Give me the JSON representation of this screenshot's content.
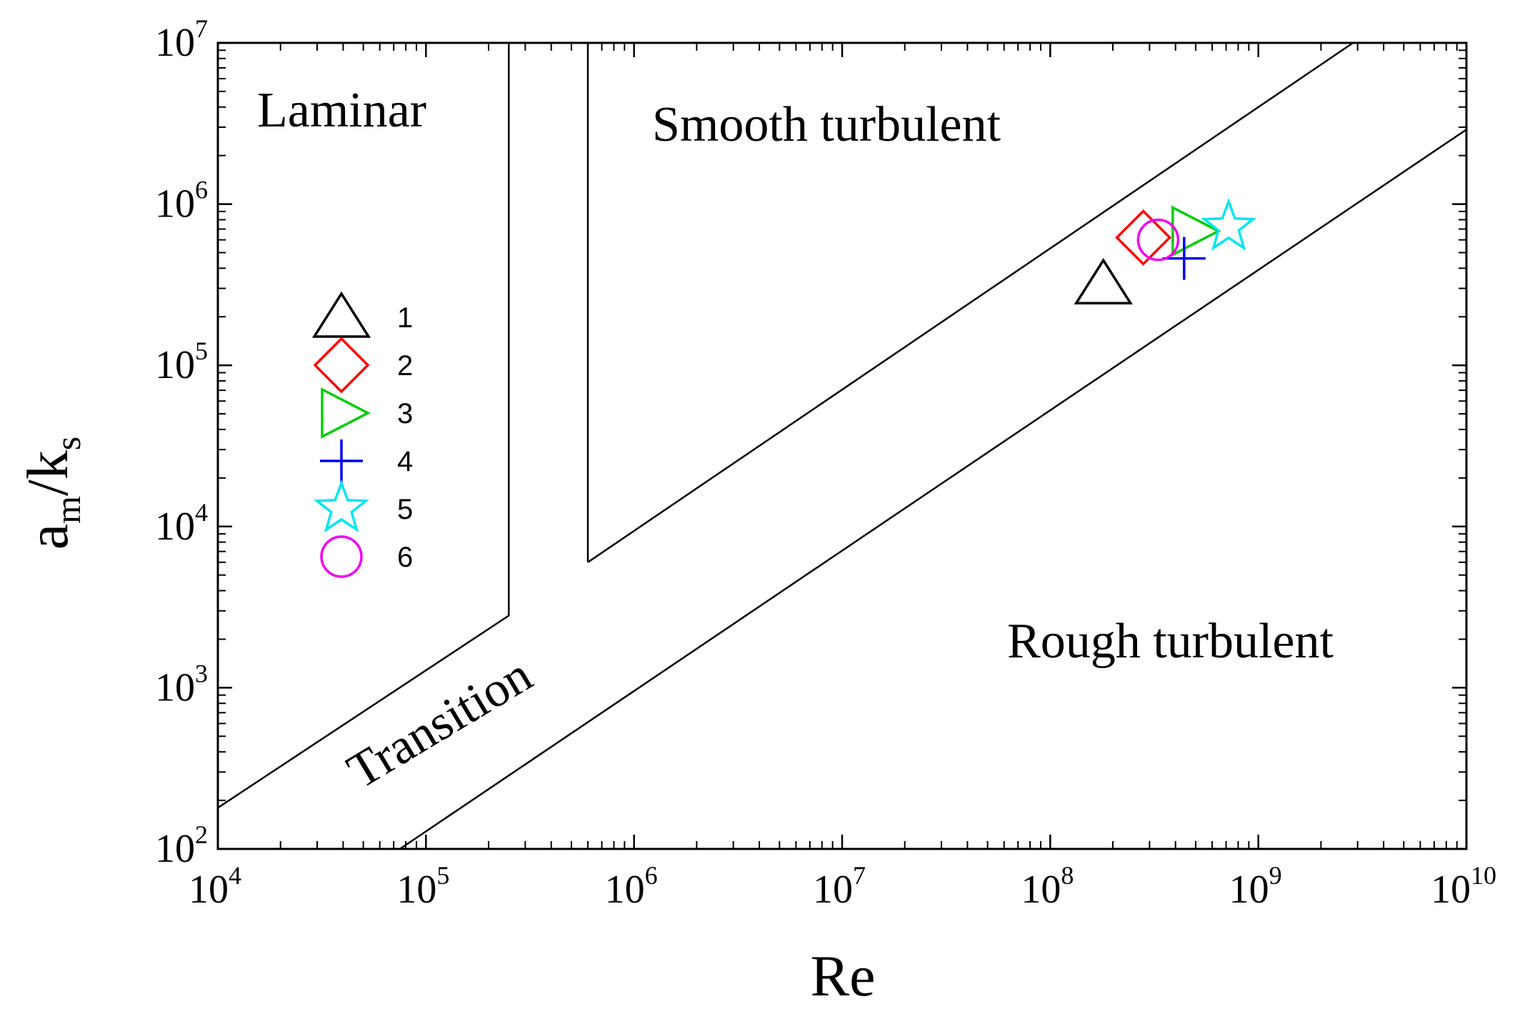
{
  "chart_data": {
    "type": "scatter",
    "xscale": "log",
    "yscale": "log",
    "xlim": [
      10000,
      10000000000
    ],
    "ylim": [
      100,
      10000000
    ],
    "xlabel": "Re",
    "ylabel": {
      "base": "a",
      "sub1": "m",
      "mid": "/k",
      "sub2": "s"
    },
    "xticks": [
      {
        "value": 10000,
        "base": "10",
        "exp": "4"
      },
      {
        "value": 100000,
        "base": "10",
        "exp": "5"
      },
      {
        "value": 1000000,
        "base": "10",
        "exp": "6"
      },
      {
        "value": 10000000,
        "base": "10",
        "exp": "7"
      },
      {
        "value": 100000000,
        "base": "10",
        "exp": "8"
      },
      {
        "value": 1000000000,
        "base": "10",
        "exp": "9"
      },
      {
        "value": 10000000000,
        "base": "10",
        "exp": "10"
      }
    ],
    "yticks": [
      {
        "value": 100,
        "base": "10",
        "exp": "2"
      },
      {
        "value": 1000,
        "base": "10",
        "exp": "3"
      },
      {
        "value": 10000,
        "base": "10",
        "exp": "4"
      },
      {
        "value": 100000,
        "base": "10",
        "exp": "5"
      },
      {
        "value": 1000000,
        "base": "10",
        "exp": "6"
      },
      {
        "value": 10000000,
        "base": "10",
        "exp": "7"
      }
    ],
    "regions": [
      "Laminar",
      "Smooth turbulent",
      "Transition",
      "Rough turbulent"
    ],
    "boundaries": [
      {
        "name": "laminar-transition",
        "points": [
          [
            10000,
            180
          ],
          [
            250000,
            2800
          ],
          [
            250000,
            10000000
          ]
        ]
      },
      {
        "name": "transition-smooth",
        "points": [
          [
            600000,
            6000
          ],
          [
            600000,
            10000000
          ]
        ]
      },
      {
        "name": "smooth-rough-upper",
        "points": [
          [
            600000,
            6000
          ],
          [
            2850000000,
            10000000
          ]
        ]
      },
      {
        "name": "transition-rough",
        "points": [
          [
            75000,
            100
          ],
          [
            10000000000,
            2900000
          ]
        ]
      }
    ],
    "series": [
      {
        "name": "1",
        "marker": "triangle-up",
        "color": "#000000",
        "x": 180000000,
        "y": 320000
      },
      {
        "name": "2",
        "marker": "diamond",
        "color": "#ff0000",
        "x": 280000000,
        "y": 620000
      },
      {
        "name": "3",
        "marker": "triangle-right",
        "color": "#00cc00",
        "x": 480000000,
        "y": 680000
      },
      {
        "name": "4",
        "marker": "plus",
        "color": "#0000ee",
        "x": 440000000,
        "y": 460000
      },
      {
        "name": "5",
        "marker": "star",
        "color": "#00e5ee",
        "x": 720000000,
        "y": 720000
      },
      {
        "name": "6",
        "marker": "circle",
        "color": "#ee00ee",
        "x": 330000000,
        "y": 600000
      }
    ]
  }
}
